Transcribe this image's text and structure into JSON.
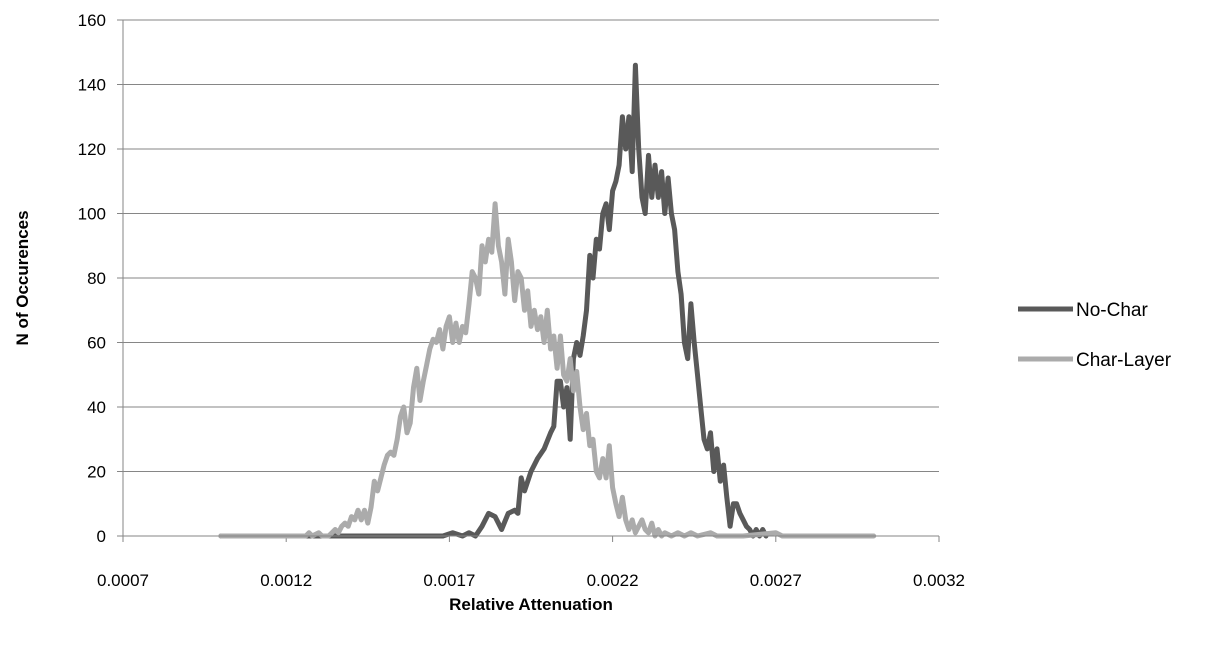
{
  "chart_data": {
    "type": "line",
    "title": "",
    "xlabel": "Relative Attenuation",
    "ylabel": "N of Occurences",
    "xlim": [
      0.0007,
      0.0032
    ],
    "ylim": [
      0,
      160
    ],
    "x_ticks": [
      "0.0007",
      "0.0012",
      "0.0017",
      "0.0022",
      "0.0027",
      "0.0032"
    ],
    "y_ticks": [
      "0",
      "20",
      "40",
      "60",
      "80",
      "100",
      "120",
      "140",
      "160"
    ],
    "grid": "horizontal",
    "legend_position": "right",
    "series": [
      {
        "name": "No-Char",
        "color": "#595959",
        "points": [
          [
            0.001,
            0
          ],
          [
            0.0013,
            0
          ],
          [
            0.0016,
            0
          ],
          [
            0.00168,
            0
          ],
          [
            0.00171,
            1
          ],
          [
            0.00174,
            0
          ],
          [
            0.00176,
            1
          ],
          [
            0.00178,
            0
          ],
          [
            0.0018,
            3
          ],
          [
            0.00182,
            7
          ],
          [
            0.00184,
            6
          ],
          [
            0.00186,
            2
          ],
          [
            0.00188,
            7
          ],
          [
            0.0019,
            8
          ],
          [
            0.00191,
            7
          ],
          [
            0.00192,
            18
          ],
          [
            0.00193,
            14
          ],
          [
            0.00195,
            20
          ],
          [
            0.00197,
            24
          ],
          [
            0.00199,
            27
          ],
          [
            0.00201,
            32
          ],
          [
            0.00202,
            34
          ],
          [
            0.00203,
            48
          ],
          [
            0.00204,
            48
          ],
          [
            0.00205,
            40
          ],
          [
            0.00206,
            46
          ],
          [
            0.00207,
            30
          ],
          [
            0.00208,
            55
          ],
          [
            0.00209,
            60
          ],
          [
            0.0021,
            56
          ],
          [
            0.00211,
            62
          ],
          [
            0.00212,
            70
          ],
          [
            0.00213,
            87
          ],
          [
            0.00214,
            80
          ],
          [
            0.00215,
            92
          ],
          [
            0.00216,
            89
          ],
          [
            0.00217,
            100
          ],
          [
            0.00218,
            103
          ],
          [
            0.00219,
            95
          ],
          [
            0.0022,
            107
          ],
          [
            0.00221,
            110
          ],
          [
            0.00222,
            115
          ],
          [
            0.00223,
            130
          ],
          [
            0.00224,
            120
          ],
          [
            0.00225,
            130
          ],
          [
            0.00226,
            113
          ],
          [
            0.00227,
            146
          ],
          [
            0.00228,
            120
          ],
          [
            0.00229,
            105
          ],
          [
            0.0023,
            100
          ],
          [
            0.00231,
            118
          ],
          [
            0.00232,
            105
          ],
          [
            0.00233,
            115
          ],
          [
            0.00234,
            105
          ],
          [
            0.00235,
            113
          ],
          [
            0.00236,
            100
          ],
          [
            0.00237,
            111
          ],
          [
            0.00238,
            100
          ],
          [
            0.00239,
            95
          ],
          [
            0.0024,
            82
          ],
          [
            0.00241,
            75
          ],
          [
            0.00242,
            60
          ],
          [
            0.00243,
            55
          ],
          [
            0.00244,
            72
          ],
          [
            0.00245,
            60
          ],
          [
            0.00246,
            50
          ],
          [
            0.00247,
            40
          ],
          [
            0.00248,
            30
          ],
          [
            0.00249,
            27
          ],
          [
            0.0025,
            32
          ],
          [
            0.00251,
            20
          ],
          [
            0.00252,
            27
          ],
          [
            0.00253,
            17
          ],
          [
            0.00254,
            22
          ],
          [
            0.00255,
            12
          ],
          [
            0.00256,
            3
          ],
          [
            0.00257,
            10
          ],
          [
            0.00258,
            10
          ],
          [
            0.00259,
            7
          ],
          [
            0.0026,
            5
          ],
          [
            0.00261,
            3
          ],
          [
            0.00262,
            2
          ],
          [
            0.00263,
            0
          ],
          [
            0.00264,
            2
          ],
          [
            0.00265,
            0
          ],
          [
            0.00266,
            2
          ],
          [
            0.00267,
            0
          ]
        ]
      },
      {
        "name": "Char-Layer",
        "color": "#ababab",
        "points": [
          [
            0.001,
            0
          ],
          [
            0.0012,
            0
          ],
          [
            0.00126,
            0
          ],
          [
            0.00127,
            1
          ],
          [
            0.00128,
            0
          ],
          [
            0.0013,
            1
          ],
          [
            0.00131,
            0
          ],
          [
            0.00133,
            0
          ],
          [
            0.00134,
            1
          ],
          [
            0.00135,
            2
          ],
          [
            0.00136,
            1
          ],
          [
            0.00137,
            3
          ],
          [
            0.00138,
            4
          ],
          [
            0.00139,
            3
          ],
          [
            0.0014,
            6
          ],
          [
            0.00141,
            5
          ],
          [
            0.00142,
            8
          ],
          [
            0.00143,
            5
          ],
          [
            0.00144,
            8
          ],
          [
            0.00145,
            4
          ],
          [
            0.00146,
            9
          ],
          [
            0.00147,
            17
          ],
          [
            0.00148,
            14
          ],
          [
            0.00149,
            18
          ],
          [
            0.0015,
            22
          ],
          [
            0.00151,
            25
          ],
          [
            0.00152,
            26
          ],
          [
            0.00153,
            25
          ],
          [
            0.00154,
            30
          ],
          [
            0.00155,
            37
          ],
          [
            0.00156,
            40
          ],
          [
            0.00157,
            32
          ],
          [
            0.00158,
            35
          ],
          [
            0.00159,
            46
          ],
          [
            0.0016,
            52
          ],
          [
            0.00161,
            42
          ],
          [
            0.00162,
            48
          ],
          [
            0.00163,
            53
          ],
          [
            0.00164,
            58
          ],
          [
            0.00165,
            61
          ],
          [
            0.00166,
            60
          ],
          [
            0.00167,
            64
          ],
          [
            0.00168,
            58
          ],
          [
            0.00169,
            65
          ],
          [
            0.0017,
            68
          ],
          [
            0.00171,
            60
          ],
          [
            0.00172,
            66
          ],
          [
            0.00173,
            60
          ],
          [
            0.00174,
            65
          ],
          [
            0.00175,
            63
          ],
          [
            0.00176,
            72
          ],
          [
            0.00177,
            82
          ],
          [
            0.00178,
            80
          ],
          [
            0.00179,
            75
          ],
          [
            0.0018,
            90
          ],
          [
            0.00181,
            85
          ],
          [
            0.00182,
            92
          ],
          [
            0.00183,
            88
          ],
          [
            0.00184,
            103
          ],
          [
            0.00185,
            90
          ],
          [
            0.00186,
            85
          ],
          [
            0.00187,
            75
          ],
          [
            0.00188,
            92
          ],
          [
            0.00189,
            85
          ],
          [
            0.0019,
            73
          ],
          [
            0.00191,
            82
          ],
          [
            0.00192,
            80
          ],
          [
            0.00193,
            70
          ],
          [
            0.00194,
            76
          ],
          [
            0.00195,
            65
          ],
          [
            0.00196,
            70
          ],
          [
            0.00197,
            64
          ],
          [
            0.00198,
            68
          ],
          [
            0.00199,
            60
          ],
          [
            0.002,
            70
          ],
          [
            0.00201,
            58
          ],
          [
            0.00202,
            62
          ],
          [
            0.00203,
            52
          ],
          [
            0.00204,
            62
          ],
          [
            0.00205,
            50
          ],
          [
            0.00206,
            48
          ],
          [
            0.00207,
            55
          ],
          [
            0.00208,
            45
          ],
          [
            0.00209,
            51
          ],
          [
            0.0021,
            40
          ],
          [
            0.00211,
            33
          ],
          [
            0.00212,
            38
          ],
          [
            0.00213,
            28
          ],
          [
            0.00214,
            30
          ],
          [
            0.00215,
            20
          ],
          [
            0.00216,
            18
          ],
          [
            0.00217,
            24
          ],
          [
            0.00218,
            18
          ],
          [
            0.00219,
            28
          ],
          [
            0.0022,
            15
          ],
          [
            0.00221,
            10
          ],
          [
            0.00222,
            6
          ],
          [
            0.00223,
            12
          ],
          [
            0.00224,
            5
          ],
          [
            0.00225,
            2
          ],
          [
            0.00226,
            5
          ],
          [
            0.00227,
            1
          ],
          [
            0.00228,
            3
          ],
          [
            0.00229,
            5
          ],
          [
            0.0023,
            2
          ],
          [
            0.00231,
            1
          ],
          [
            0.00232,
            4
          ],
          [
            0.00233,
            0
          ],
          [
            0.00234,
            2
          ],
          [
            0.00235,
            0
          ],
          [
            0.00236,
            1
          ],
          [
            0.00238,
            0
          ],
          [
            0.0024,
            1
          ],
          [
            0.00242,
            0
          ],
          [
            0.00244,
            1
          ],
          [
            0.00246,
            0
          ],
          [
            0.0025,
            1
          ],
          [
            0.00252,
            0
          ],
          [
            0.0026,
            0
          ],
          [
            0.0027,
            1
          ],
          [
            0.00272,
            0
          ],
          [
            0.003,
            0
          ]
        ]
      }
    ]
  }
}
